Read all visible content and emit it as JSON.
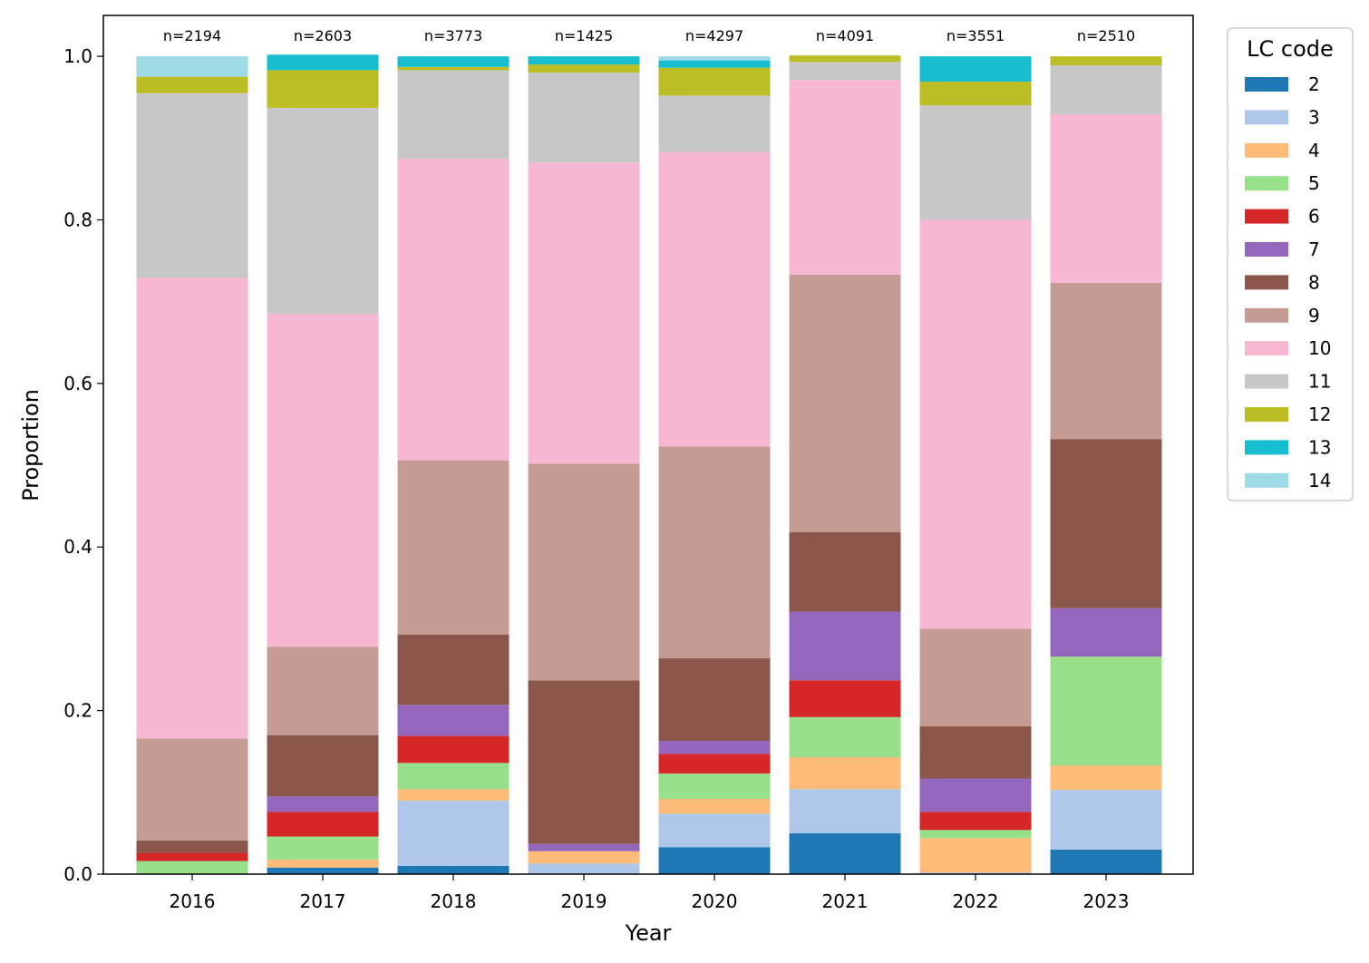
{
  "chart_data": {
    "type": "bar",
    "stacked": true,
    "categories": [
      "2016",
      "2017",
      "2018",
      "2019",
      "2020",
      "2021",
      "2022",
      "2023"
    ],
    "counts": [
      "n=2194",
      "n=2603",
      "n=3773",
      "n=1425",
      "n=4297",
      "n=4091",
      "n=3551",
      "n=2510"
    ],
    "xlabel": "Year",
    "ylabel": "Proportion",
    "ylim": [
      0,
      1.05
    ],
    "yticks": [
      "0.0",
      "0.2",
      "0.4",
      "0.6",
      "0.8",
      "1.0"
    ],
    "legend": {
      "title": "LC code",
      "position": "outside-top-right"
    },
    "series": [
      {
        "name": "2",
        "color": "#1f77b4",
        "values": [
          0.0,
          0.008,
          0.01,
          0.0,
          0.033,
          0.05,
          0.0,
          0.03
        ]
      },
      {
        "name": "3",
        "color": "#aec7e8",
        "values": [
          0.0,
          0.0,
          0.08,
          0.013,
          0.041,
          0.054,
          0.002,
          0.073
        ]
      },
      {
        "name": "4",
        "color": "#ffbb78",
        "values": [
          0.0,
          0.01,
          0.014,
          0.015,
          0.018,
          0.039,
          0.042,
          0.03
        ]
      },
      {
        "name": "5",
        "color": "#98df8a",
        "values": [
          0.016,
          0.028,
          0.032,
          0.0,
          0.031,
          0.049,
          0.01,
          0.133
        ]
      },
      {
        "name": "6",
        "color": "#d62728",
        "values": [
          0.01,
          0.03,
          0.033,
          0.0,
          0.024,
          0.045,
          0.022,
          0.0
        ]
      },
      {
        "name": "7",
        "color": "#9467bd",
        "values": [
          0.0,
          0.019,
          0.038,
          0.009,
          0.016,
          0.084,
          0.041,
          0.059
        ]
      },
      {
        "name": "8",
        "color": "#8c564b",
        "values": [
          0.015,
          0.075,
          0.086,
          0.2,
          0.101,
          0.097,
          0.064,
          0.207
        ]
      },
      {
        "name": "9",
        "color": "#c49c94",
        "values": [
          0.125,
          0.108,
          0.213,
          0.265,
          0.259,
          0.315,
          0.119,
          0.191
        ]
      },
      {
        "name": "10",
        "color": "#f7b6d2",
        "values": [
          0.563,
          0.407,
          0.369,
          0.368,
          0.36,
          0.238,
          0.5,
          0.206
        ]
      },
      {
        "name": "11",
        "color": "#c7c7c7",
        "values": [
          0.226,
          0.252,
          0.108,
          0.11,
          0.069,
          0.022,
          0.14,
          0.06
        ]
      },
      {
        "name": "12",
        "color": "#bcbd22",
        "values": [
          0.02,
          0.046,
          0.004,
          0.01,
          0.034,
          0.008,
          0.029,
          0.011
        ]
      },
      {
        "name": "13",
        "color": "#17becf",
        "values": [
          0.0,
          0.019,
          0.013,
          0.01,
          0.009,
          0.0,
          0.031,
          0.0
        ]
      },
      {
        "name": "14",
        "color": "#9edae5",
        "values": [
          0.025,
          0.0,
          0.0,
          0.0,
          0.005,
          0.0,
          0.0,
          0.0
        ]
      }
    ]
  }
}
